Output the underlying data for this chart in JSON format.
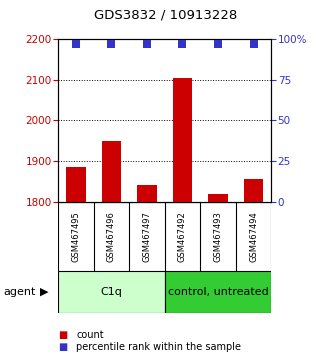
{
  "title": "GDS3832 / 10913228",
  "samples": [
    "GSM467495",
    "GSM467496",
    "GSM467497",
    "GSM467492",
    "GSM467493",
    "GSM467494"
  ],
  "counts": [
    1885,
    1950,
    1840,
    2105,
    1820,
    1855
  ],
  "percentile_ranks": [
    97,
    97,
    97,
    97,
    97,
    97
  ],
  "ylim_left": [
    1800,
    2200
  ],
  "ylim_right": [
    0,
    100
  ],
  "yticks_left": [
    1800,
    1900,
    2000,
    2100,
    2200
  ],
  "yticks_right": [
    0,
    25,
    50,
    75,
    100
  ],
  "bar_color": "#cc0000",
  "dot_color": "#3333cc",
  "groups": [
    {
      "label": "C1q",
      "indices": [
        0,
        1,
        2
      ],
      "color": "#ccffcc"
    },
    {
      "label": "control, untreated",
      "indices": [
        3,
        4,
        5
      ],
      "color": "#33cc33"
    }
  ],
  "agent_label": "agent",
  "legend_bar_label": "count",
  "legend_dot_label": "percentile rank within the sample",
  "bar_width": 0.55,
  "dot_size": 40,
  "background_color": "#ffffff",
  "plot_bg_color": "#ffffff",
  "grid_color": "#000000",
  "left_tick_color": "#cc0000",
  "right_tick_color": "#3333cc",
  "sample_bg_color": "#cccccc"
}
